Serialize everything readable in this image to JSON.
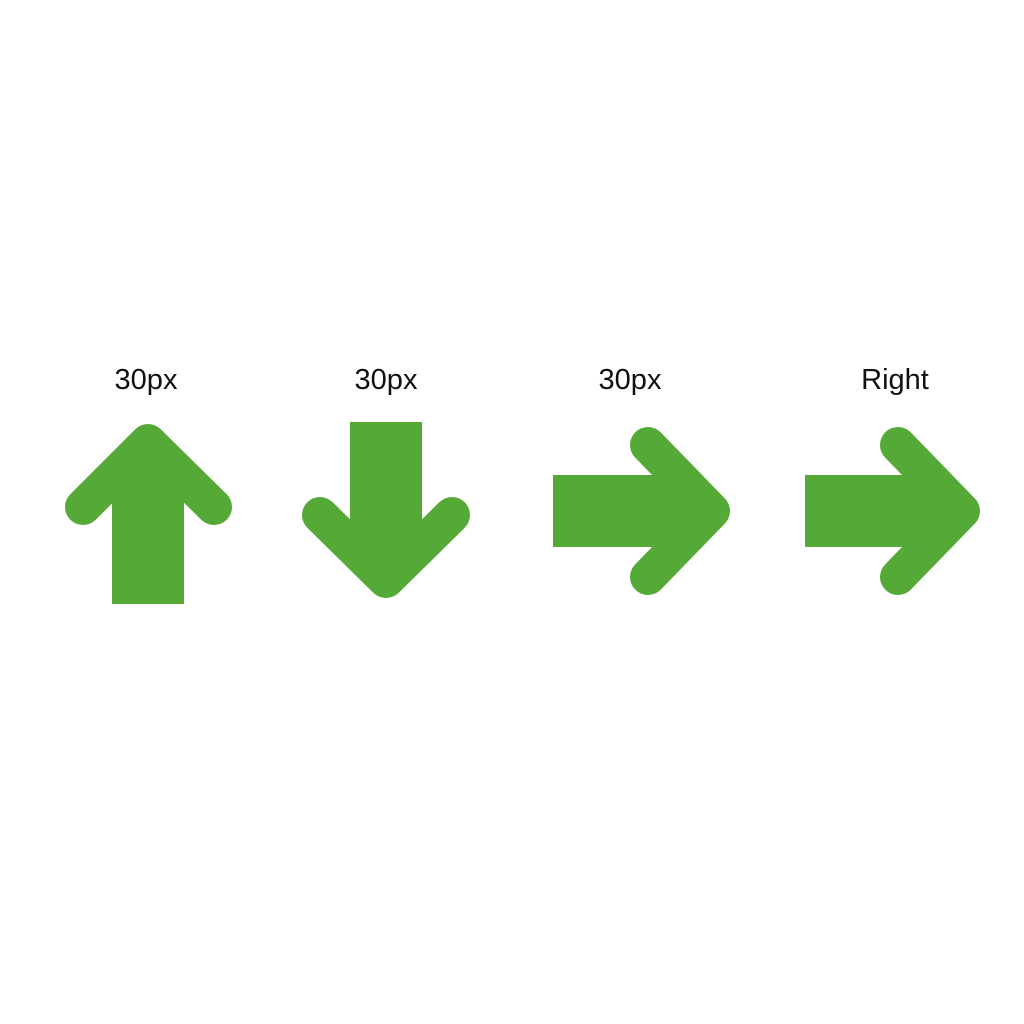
{
  "items": [
    {
      "label": "30px",
      "direction": "up",
      "icon": "arrow-up-icon"
    },
    {
      "label": "30px",
      "direction": "down",
      "icon": "arrow-down-icon"
    },
    {
      "label": "30px",
      "direction": "right",
      "icon": "arrow-right-icon"
    },
    {
      "label": "Right",
      "direction": "right",
      "icon": "arrow-right-icon"
    }
  ],
  "colors": {
    "arrow": "#55A936",
    "text": "#111111",
    "background": "#FFFFFF"
  }
}
